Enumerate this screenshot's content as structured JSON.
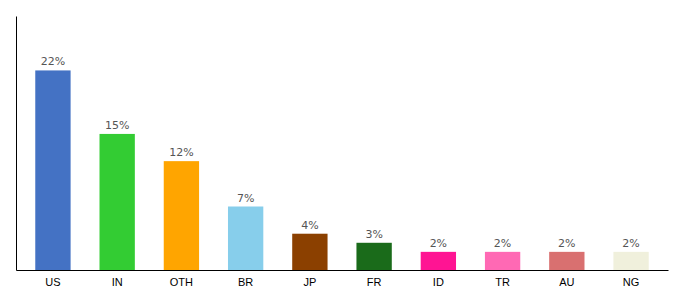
{
  "chart_data": {
    "type": "bar",
    "categories": [
      "US",
      "IN",
      "OTH",
      "BR",
      "JP",
      "FR",
      "ID",
      "TR",
      "AU",
      "NG"
    ],
    "values": [
      22,
      15,
      12,
      7,
      4,
      3,
      2,
      2,
      2,
      2
    ],
    "value_labels": [
      "22%",
      "15%",
      "12%",
      "7%",
      "4%",
      "3%",
      "2%",
      "2%",
      "2%",
      "2%"
    ],
    "colors": [
      "#4472C4",
      "#33CC33",
      "#FFA500",
      "#87CEEB",
      "#8B4000",
      "#1A6B1A",
      "#FF1493",
      "#FF69B4",
      "#D97070",
      "#F0F0DC"
    ],
    "ylim": [
      0,
      28
    ],
    "data_labels": true,
    "tick_labels": "x",
    "grid": false
  }
}
